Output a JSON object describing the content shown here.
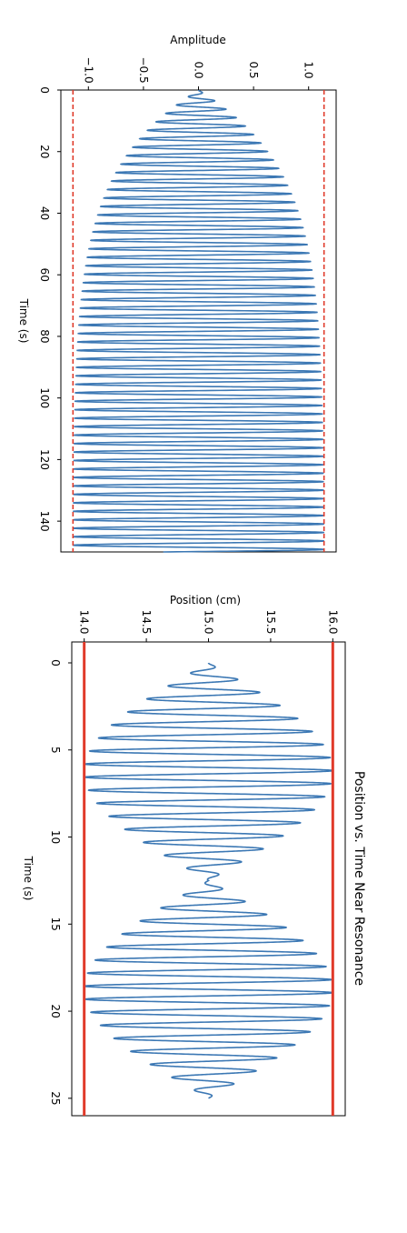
{
  "chart_data": [
    {
      "type": "line",
      "title": "",
      "xlabel": "Time (s)",
      "ylabel": "Amplitude",
      "xlim": [
        0,
        150
      ],
      "ylim": [
        -1.25,
        1.25
      ],
      "xticks": [
        0,
        20,
        40,
        60,
        80,
        100,
        120,
        140
      ],
      "xtick_labels": [
        "0",
        "20",
        "40",
        "60",
        "80",
        "100",
        "120",
        "140"
      ],
      "yticks": [
        -1.0,
        -0.5,
        0.0,
        0.5,
        1.0
      ],
      "ytick_labels": [
        "−1.0",
        "−0.5",
        "0.0",
        "0.5",
        "1.0"
      ],
      "grid": false,
      "series": [
        {
          "kind": "oscillation",
          "color": "#3c78b4",
          "envelope": "1.14*(1-exp(-t/25))",
          "period": 2.75,
          "x_range": [
            0,
            150
          ]
        },
        {
          "kind": "hline",
          "y": 1.14,
          "color": "#e03a2a",
          "dashed": true
        },
        {
          "kind": "hline",
          "y": -1.14,
          "color": "#e03a2a",
          "dashed": true
        }
      ]
    },
    {
      "type": "line",
      "title": "Position vs. Time Near Resonance",
      "xlabel": "Time (s)",
      "ylabel": "Position (cm)",
      "xlim": [
        -1.2,
        26
      ],
      "ylim": [
        13.9,
        16.1
      ],
      "xticks": [
        0,
        5,
        10,
        15,
        20,
        25
      ],
      "xtick_labels": [
        "0",
        "5",
        "10",
        "15",
        "20",
        "25"
      ],
      "yticks": [
        14.0,
        14.5,
        15.0,
        15.5,
        16.0
      ],
      "ytick_labels": [
        "14.0",
        "14.5",
        "15.0",
        "15.5",
        "16.0"
      ],
      "grid": false,
      "series": [
        {
          "kind": "beat",
          "color": "#3c78b4",
          "center": 15.0,
          "amplitude": 1.0,
          "beat_period": 25,
          "period": 0.75,
          "x_range": [
            0,
            25
          ]
        },
        {
          "kind": "hline",
          "y": 16.0,
          "color": "#e03a2a",
          "dashed": false
        },
        {
          "kind": "hline",
          "y": 14.0,
          "color": "#e03a2a",
          "dashed": false
        }
      ]
    }
  ]
}
